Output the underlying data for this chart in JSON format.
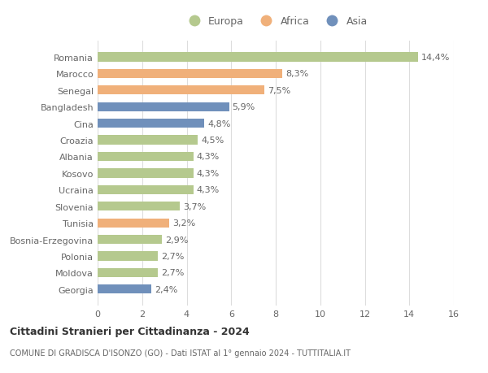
{
  "countries": [
    "Romania",
    "Marocco",
    "Senegal",
    "Bangladesh",
    "Cina",
    "Croazia",
    "Albania",
    "Kosovo",
    "Ucraina",
    "Slovenia",
    "Tunisia",
    "Bosnia-Erzegovina",
    "Polonia",
    "Moldova",
    "Georgia"
  ],
  "values": [
    14.4,
    8.3,
    7.5,
    5.9,
    4.8,
    4.5,
    4.3,
    4.3,
    4.3,
    3.7,
    3.2,
    2.9,
    2.7,
    2.7,
    2.4
  ],
  "labels": [
    "14,4%",
    "8,3%",
    "7,5%",
    "5,9%",
    "4,8%",
    "4,5%",
    "4,3%",
    "4,3%",
    "4,3%",
    "3,7%",
    "3,2%",
    "2,9%",
    "2,7%",
    "2,7%",
    "2,4%"
  ],
  "continents": [
    "Europa",
    "Africa",
    "Africa",
    "Asia",
    "Asia",
    "Europa",
    "Europa",
    "Europa",
    "Europa",
    "Europa",
    "Africa",
    "Europa",
    "Europa",
    "Europa",
    "Asia"
  ],
  "colors": {
    "Europa": "#b5c98e",
    "Africa": "#f0b07a",
    "Asia": "#7090bb"
  },
  "title_line1": "Cittadini Stranieri per Cittadinanza - 2024",
  "title_line2": "COMUNE DI GRADISCA D'ISONZO (GO) - Dati ISTAT al 1° gennaio 2024 - TUTTITALIA.IT",
  "xlim": [
    0,
    16
  ],
  "xticks": [
    0,
    2,
    4,
    6,
    8,
    10,
    12,
    14,
    16
  ],
  "background_color": "#ffffff",
  "grid_color": "#dddddd",
  "bar_height": 0.55
}
